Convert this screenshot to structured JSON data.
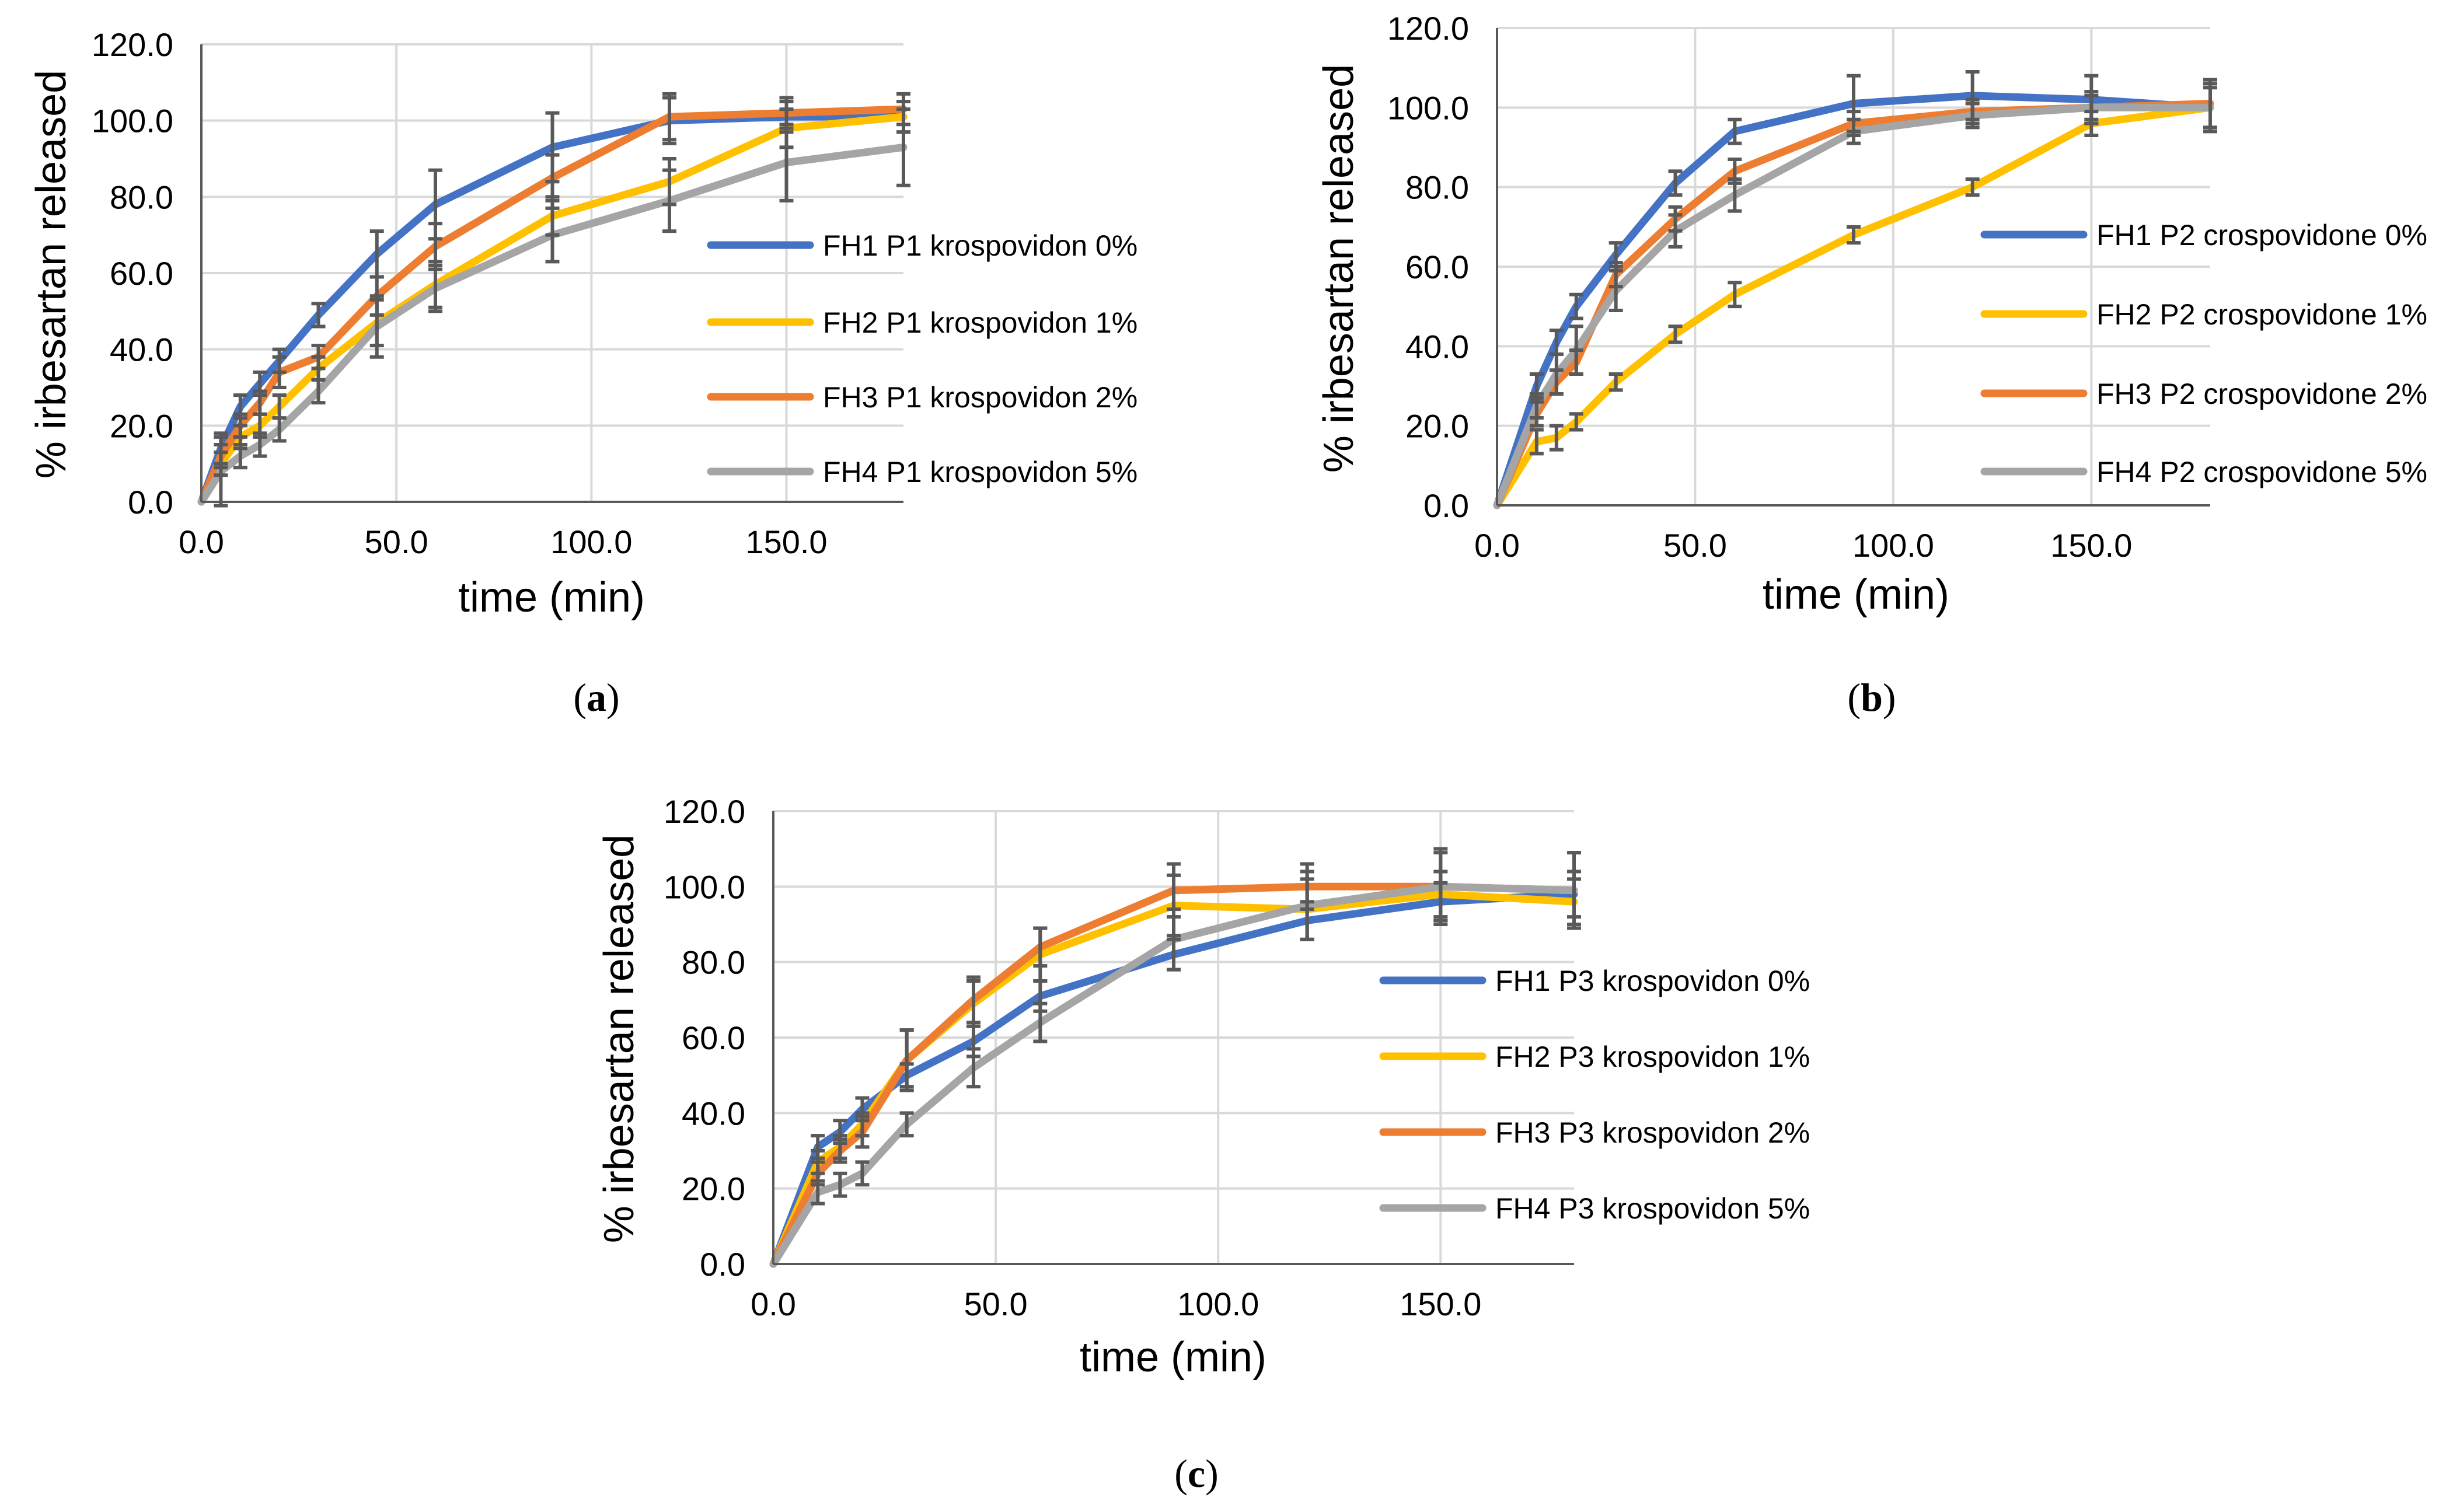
{
  "colors": {
    "blue": "#4472C4",
    "yellow": "#FFC000",
    "orange": "#ED7D31",
    "gray": "#A5A5A5",
    "error_bar": "#595959",
    "grid": "#D9D9D9"
  },
  "chart_data": [
    {
      "type": "line",
      "panel_letter": "a",
      "xlabel": "time (min)",
      "ylabel": "% irbesartan released",
      "xlim": [
        0,
        180
      ],
      "ylim": [
        0,
        120
      ],
      "x_ticks": [
        0,
        50,
        100,
        150
      ],
      "x_tick_labels": [
        "0.0",
        "50.0",
        "100.0",
        "150.0"
      ],
      "y_ticks": [
        0,
        20,
        40,
        60,
        80,
        100,
        120
      ],
      "y_tick_labels": [
        "0.0",
        "20.0",
        "40.0",
        "60.0",
        "80.0",
        "100.0",
        "120.0"
      ],
      "legend_position": "right",
      "x": [
        0,
        5,
        10,
        15,
        20,
        30,
        45,
        60,
        90,
        120,
        150,
        180
      ],
      "series": [
        {
          "name": "FH1 P1 krospovidon 0%",
          "color": "#4472C4",
          "values": [
            0,
            14,
            25,
            31,
            37,
            49,
            65,
            78,
            93,
            100,
            101,
            101
          ],
          "errors": [
            0,
            4,
            3,
            3,
            3,
            3,
            6,
            9,
            9,
            6,
            4,
            4
          ]
        },
        {
          "name": "FH2 P1 krospovidon 1%",
          "color": "#FFC000",
          "values": [
            0,
            10,
            17,
            20,
            25,
            35,
            47,
            57,
            75,
            84,
            98,
            101
          ],
          "errors": [
            0,
            3,
            3,
            3,
            3,
            3,
            6,
            6,
            5,
            6,
            5,
            4
          ]
        },
        {
          "name": "FH3 P1 krospovidon 2%",
          "color": "#ED7D31",
          "values": [
            0,
            12,
            20,
            26,
            34,
            38,
            54,
            67,
            85,
            101,
            102,
            103
          ],
          "errors": [
            0,
            3,
            3,
            3,
            4,
            3,
            5,
            6,
            6,
            6,
            4,
            4
          ]
        },
        {
          "name": "FH4 P1 krospovidon 5%",
          "color": "#A5A5A5",
          "values": [
            0,
            8,
            12,
            15,
            19,
            29,
            46,
            56,
            70,
            79,
            89,
            93
          ],
          "errors": [
            0,
            9,
            3,
            3,
            3,
            3,
            8,
            6,
            7,
            8,
            10,
            10
          ]
        }
      ]
    },
    {
      "type": "line",
      "panel_letter": "b",
      "xlabel": "time (min)",
      "ylabel": "% irbesartan released",
      "xlim": [
        0,
        180
      ],
      "ylim": [
        0,
        120
      ],
      "x_ticks": [
        0,
        50,
        100,
        150
      ],
      "x_tick_labels": [
        "0.0",
        "50.0",
        "100.0",
        "150.0"
      ],
      "y_ticks": [
        0,
        20,
        40,
        60,
        80,
        100,
        120
      ],
      "y_tick_labels": [
        "0.0",
        "20.0",
        "40.0",
        "60.0",
        "80.0",
        "100.0",
        "120.0"
      ],
      "legend_position": "right",
      "x": [
        0,
        10,
        15,
        20,
        30,
        45,
        60,
        90,
        120,
        150,
        180
      ],
      "series": [
        {
          "name": "FH1 P2 crospovidone 0%",
          "color": "#4472C4",
          "values": [
            0,
            30,
            41,
            50,
            63,
            81,
            94,
            101,
            103,
            102,
            100
          ],
          "errors": [
            0,
            3,
            3,
            3,
            3,
            3,
            3,
            7,
            6,
            6,
            6
          ]
        },
        {
          "name": "FH2 P2 crospovidone 1%",
          "color": "#FFC000",
          "values": [
            0,
            16,
            17,
            21,
            31,
            43,
            53,
            68,
            80,
            96,
            100
          ],
          "errors": [
            0,
            3,
            3,
            2,
            2,
            2,
            3,
            2,
            2,
            3,
            6
          ]
        },
        {
          "name": "FH3 P2 crospovidone 2%",
          "color": "#ED7D31",
          "values": [
            0,
            23,
            31,
            36,
            58,
            72,
            84,
            96,
            99,
            100,
            101
          ],
          "errors": [
            0,
            3,
            3,
            3,
            3,
            3,
            3,
            3,
            3,
            3,
            6
          ]
        },
        {
          "name": "FH4 P2 crospovidone 5%",
          "color": "#A5A5A5",
          "values": [
            0,
            25,
            33,
            39,
            54,
            69,
            78,
            94,
            98,
            100,
            100
          ],
          "errors": [
            0,
            3,
            5,
            6,
            5,
            4,
            4,
            3,
            3,
            4,
            5
          ]
        }
      ]
    },
    {
      "type": "line",
      "panel_letter": "c",
      "xlabel": "time (min)",
      "ylabel": "% irbesartan released",
      "xlim": [
        0,
        180
      ],
      "ylim": [
        0,
        120
      ],
      "x_ticks": [
        0,
        50,
        100,
        150
      ],
      "x_tick_labels": [
        "0.0",
        "50.0",
        "100.0",
        "150.0"
      ],
      "y_ticks": [
        0,
        20,
        40,
        60,
        80,
        100,
        120
      ],
      "y_tick_labels": [
        "0.0",
        "20.0",
        "40.0",
        "60.0",
        "80.0",
        "100.0",
        "120.0"
      ],
      "legend_position": "right",
      "x": [
        0,
        10,
        15,
        20,
        30,
        45,
        60,
        90,
        120,
        150,
        180
      ],
      "series": [
        {
          "name": "FH1 P3 krospovidon 0%",
          "color": "#4472C4",
          "values": [
            0,
            31,
            35,
            41,
            50,
            59,
            71,
            82,
            91,
            96,
            98
          ],
          "errors": [
            0,
            3,
            3,
            3,
            3,
            4,
            4,
            4,
            5,
            5,
            6
          ]
        },
        {
          "name": "FH2 P3 krospovidon 1%",
          "color": "#FFC000",
          "values": [
            0,
            27,
            31,
            37,
            54,
            69,
            82,
            95,
            94,
            98,
            96
          ],
          "errors": [
            0,
            3,
            3,
            3,
            8,
            6,
            7,
            8,
            8,
            6,
            6
          ]
        },
        {
          "name": "FH3 P3 krospovidon 2%",
          "color": "#ED7D31",
          "values": [
            0,
            24,
            30,
            35,
            54,
            70,
            84,
            99,
            100,
            100,
            99
          ],
          "errors": [
            0,
            3,
            3,
            4,
            8,
            6,
            5,
            7,
            6,
            10,
            10
          ]
        },
        {
          "name": "FH4 P3 krospovidon 5%",
          "color": "#A5A5A5",
          "values": [
            0,
            19,
            21,
            24,
            37,
            52,
            64,
            86,
            95,
            100,
            99
          ],
          "errors": [
            0,
            3,
            3,
            3,
            3,
            5,
            5,
            8,
            9,
            9,
            10
          ]
        }
      ]
    }
  ]
}
